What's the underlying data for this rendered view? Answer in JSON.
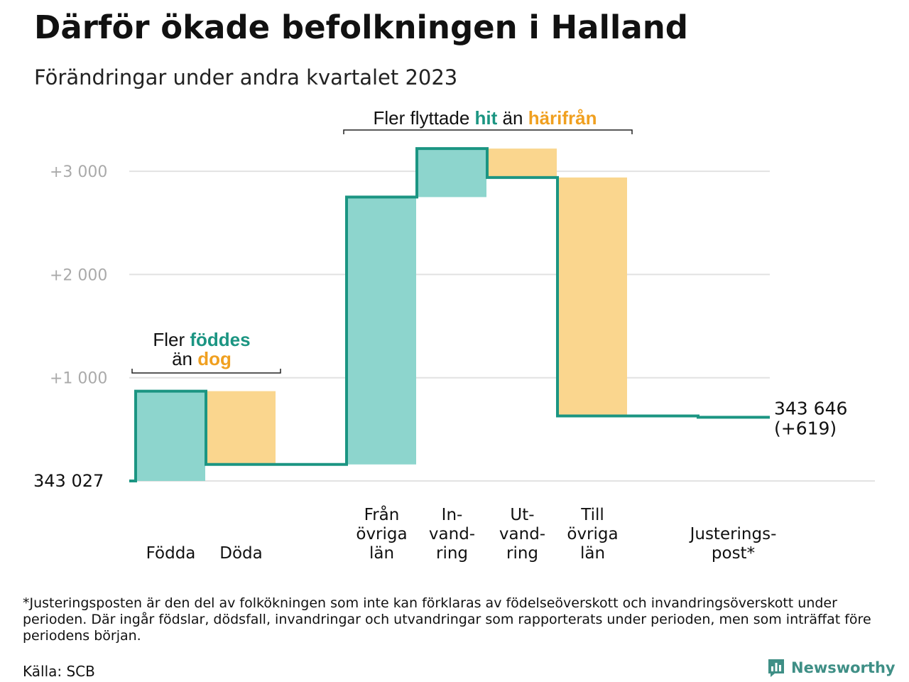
{
  "header": {
    "title": "Därför ökade befolkningen i Halland",
    "subtitle": "Förändringar under andra kvartalet 2023"
  },
  "chart_data": {
    "type": "waterfall",
    "start_value": 343027,
    "start_label": "343   027",
    "end_label_line1": "343 646",
    "end_label_line2": "(+619)",
    "y_ticks": [
      {
        "value": 1000,
        "label": "+1   000"
      },
      {
        "value": 2000,
        "label": "+2   000"
      },
      {
        "value": 3000,
        "label": "+3   000"
      }
    ],
    "ylim": [
      0,
      3300
    ],
    "grid": true,
    "steps": [
      {
        "category_lines": [
          "Födda"
        ],
        "change": 870,
        "kind": "inflow"
      },
      {
        "category_lines": [
          "Döda"
        ],
        "change": -710,
        "kind": "outflow"
      },
      {
        "category_lines": [],
        "change": 0,
        "kind": "gap"
      },
      {
        "category_lines": [
          "Från",
          "övriga",
          "län"
        ],
        "change": 2590,
        "kind": "inflow"
      },
      {
        "category_lines": [
          "In-",
          "vand-",
          "ring"
        ],
        "change": 470,
        "kind": "inflow"
      },
      {
        "category_lines": [
          "Ut-",
          "vand-",
          "ring"
        ],
        "change": -280,
        "kind": "outflow"
      },
      {
        "category_lines": [
          "Till",
          "övriga",
          "län"
        ],
        "change": -2310,
        "kind": "outflow"
      },
      {
        "category_lines": [],
        "change": 0,
        "kind": "gap"
      },
      {
        "category_lines": [
          "Justerings-",
          "post*"
        ],
        "change": -13,
        "kind": "adjustment"
      }
    ],
    "annotations": [
      {
        "segments": [
          {
            "text": "Fler ",
            "kind": "plain"
          },
          {
            "text": "föddes",
            "kind": "inflow"
          }
        ],
        "segments2": [
          {
            "text": "än ",
            "kind": "plain"
          },
          {
            "text": "dog",
            "kind": "outflow"
          }
        ]
      },
      {
        "segments": [
          {
            "text": "Fler flyttade ",
            "kind": "plain"
          },
          {
            "text": "hit",
            "kind": "inflow"
          },
          {
            "text": " än ",
            "kind": "plain"
          },
          {
            "text": "härifrån",
            "kind": "outflow"
          }
        ]
      }
    ],
    "colors": {
      "inflow_fill": "#8dd5cd",
      "outflow_fill": "#fad68e",
      "line": "#1b9582",
      "inflow_text": "#1b9582",
      "outflow_text": "#f0a020",
      "grid": "#e2e2e2",
      "tick_text": "#aaaaaa"
    }
  },
  "footer": {
    "footnote": "*Justeringsposten är den del av folkökningen som inte kan förklaras av födelseöverskott och invandringsöverskott under perioden. Där ingår födslar, dödsfall, invandringar och utvandringar som rapporterats under perioden, men som inträffat före periodens början.",
    "source": "Källa: SCB",
    "brand": "Newsworthy",
    "brand_icon": "bar-chart-icon"
  }
}
